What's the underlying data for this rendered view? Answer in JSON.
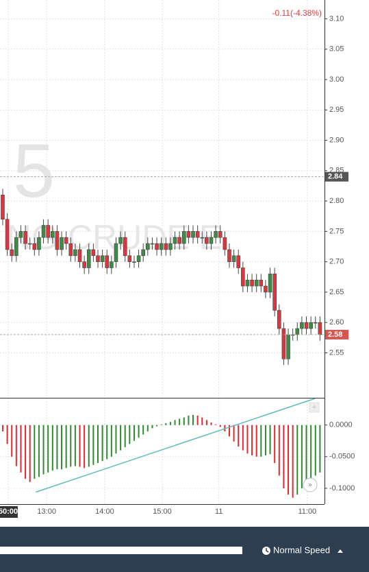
{
  "header": {
    "change": "-0.11(-4.38%)"
  },
  "watermark": {
    "interval": "5",
    "symbol": "NG CRUDE E"
  },
  "chart_data": [
    {
      "type": "candlestick",
      "x": [
        0,
        1,
        2,
        3,
        4,
        5,
        6,
        7,
        8,
        9,
        10,
        11,
        12,
        13,
        14,
        15,
        16,
        17,
        18,
        19,
        20,
        21,
        22,
        23,
        24,
        25,
        26,
        27,
        28,
        29,
        30,
        31,
        32,
        33,
        34,
        35,
        36,
        37,
        38,
        39,
        40,
        41,
        42,
        43,
        44,
        45,
        46,
        47,
        48,
        49,
        50,
        51,
        52,
        53,
        54,
        55,
        56,
        57,
        58,
        59,
        60,
        61,
        62,
        63,
        64,
        65,
        66,
        67,
        68,
        69,
        70
      ],
      "open": [
        2.81,
        2.77,
        2.72,
        2.71,
        2.74,
        2.75,
        2.73,
        2.73,
        2.72,
        2.74,
        2.76,
        2.74,
        2.75,
        2.72,
        2.74,
        2.73,
        2.71,
        2.72,
        2.7,
        2.69,
        2.72,
        2.71,
        2.7,
        2.71,
        2.69,
        2.7,
        2.73,
        2.74,
        2.71,
        2.7,
        2.7,
        2.71,
        2.72,
        2.73,
        2.73,
        2.72,
        2.73,
        2.72,
        2.73,
        2.74,
        2.73,
        2.75,
        2.74,
        2.75,
        2.74,
        2.74,
        2.73,
        2.74,
        2.75,
        2.74,
        2.72,
        2.7,
        2.71,
        2.69,
        2.66,
        2.67,
        2.66,
        2.67,
        2.66,
        2.65,
        2.68,
        2.62,
        2.59,
        2.54,
        2.58,
        2.58,
        2.59,
        2.6,
        2.59,
        2.6,
        2.6
      ],
      "high": [
        2.82,
        2.78,
        2.73,
        2.75,
        2.76,
        2.76,
        2.74,
        2.74,
        2.75,
        2.77,
        2.77,
        2.76,
        2.76,
        2.75,
        2.75,
        2.74,
        2.73,
        2.73,
        2.71,
        2.73,
        2.73,
        2.72,
        2.72,
        2.72,
        2.71,
        2.74,
        2.75,
        2.75,
        2.72,
        2.71,
        2.72,
        2.73,
        2.74,
        2.74,
        2.74,
        2.74,
        2.74,
        2.74,
        2.75,
        2.75,
        2.76,
        2.76,
        2.76,
        2.76,
        2.75,
        2.75,
        2.75,
        2.76,
        2.76,
        2.75,
        2.73,
        2.72,
        2.72,
        2.7,
        2.68,
        2.68,
        2.68,
        2.68,
        2.67,
        2.69,
        2.69,
        2.63,
        2.6,
        2.59,
        2.59,
        2.6,
        2.61,
        2.61,
        2.61,
        2.61,
        2.61
      ],
      "low": [
        2.76,
        2.71,
        2.7,
        2.7,
        2.73,
        2.72,
        2.72,
        2.71,
        2.71,
        2.73,
        2.73,
        2.73,
        2.71,
        2.71,
        2.72,
        2.7,
        2.7,
        2.69,
        2.68,
        2.68,
        2.7,
        2.69,
        2.69,
        2.68,
        2.68,
        2.69,
        2.72,
        2.7,
        2.69,
        2.69,
        2.69,
        2.7,
        2.71,
        2.72,
        2.71,
        2.71,
        2.71,
        2.71,
        2.72,
        2.72,
        2.72,
        2.73,
        2.73,
        2.73,
        2.73,
        2.72,
        2.72,
        2.73,
        2.73,
        2.71,
        2.69,
        2.69,
        2.68,
        2.65,
        2.65,
        2.65,
        2.65,
        2.65,
        2.64,
        2.64,
        2.61,
        2.58,
        2.53,
        2.53,
        2.57,
        2.57,
        2.58,
        2.58,
        2.58,
        2.59,
        2.57
      ],
      "close": [
        2.77,
        2.72,
        2.71,
        2.74,
        2.75,
        2.73,
        2.73,
        2.72,
        2.74,
        2.76,
        2.74,
        2.75,
        2.72,
        2.74,
        2.73,
        2.71,
        2.72,
        2.7,
        2.69,
        2.72,
        2.71,
        2.7,
        2.71,
        2.69,
        2.7,
        2.73,
        2.74,
        2.71,
        2.7,
        2.7,
        2.71,
        2.72,
        2.73,
        2.73,
        2.72,
        2.73,
        2.72,
        2.73,
        2.74,
        2.73,
        2.75,
        2.74,
        2.75,
        2.74,
        2.74,
        2.73,
        2.74,
        2.75,
        2.74,
        2.72,
        2.7,
        2.71,
        2.69,
        2.66,
        2.67,
        2.66,
        2.67,
        2.66,
        2.65,
        2.68,
        2.62,
        2.59,
        2.54,
        2.58,
        2.58,
        2.59,
        2.6,
        2.59,
        2.6,
        2.6,
        2.58
      ],
      "up_color": "#3d8b45",
      "down_color": "#d9363e",
      "xlim": [
        -0.6,
        71
      ],
      "xticks": [
        {
          "value": 1.2,
          "label": "50:00"
        },
        {
          "value": 9.7,
          "label": "13:00"
        },
        {
          "value": 22.5,
          "label": "14:00"
        },
        {
          "value": 35.2,
          "label": "15:00"
        },
        {
          "value": 47.7,
          "label": "11"
        },
        {
          "value": 67.2,
          "label": "11:00"
        }
      ],
      "ylim": [
        2.476,
        3.131
      ],
      "yticks": [
        {
          "value": 3.1,
          "label": "3.10"
        },
        3.05,
        {
          "value": 3,
          "label": "3.00"
        },
        2.95,
        {
          "value": 2.9,
          "label": "2.90"
        },
        2.85,
        {
          "value": 2.8,
          "label": "2.80"
        },
        2.75,
        {
          "value": 2.7,
          "label": "2.70"
        },
        2.65,
        {
          "value": 2.6,
          "label": "2.60"
        },
        2.55
      ],
      "grid": true,
      "price_lines": [
        {
          "value": 2.84,
          "color": "#555555"
        },
        {
          "value": 2.58,
          "color": "#d9534f"
        }
      ]
    },
    {
      "type": "bar",
      "x": [
        0,
        1,
        2,
        3,
        4,
        5,
        6,
        7,
        8,
        9,
        10,
        11,
        12,
        13,
        14,
        15,
        16,
        17,
        18,
        19,
        20,
        21,
        22,
        23,
        24,
        25,
        26,
        27,
        28,
        29,
        30,
        31,
        32,
        33,
        34,
        35,
        36,
        37,
        38,
        39,
        40,
        41,
        42,
        43,
        44,
        45,
        46,
        47,
        48,
        49,
        50,
        51,
        52,
        53,
        54,
        55,
        56,
        57,
        58,
        59,
        60,
        61,
        62,
        63,
        64,
        65,
        66,
        67,
        68,
        69,
        70
      ],
      "values": [
        -0.01,
        -0.03,
        -0.05,
        -0.065,
        -0.075,
        -0.085,
        -0.09,
        -0.085,
        -0.082,
        -0.078,
        -0.075,
        -0.072,
        -0.07,
        -0.07,
        -0.068,
        -0.066,
        -0.065,
        -0.066,
        -0.068,
        -0.066,
        -0.063,
        -0.06,
        -0.057,
        -0.054,
        -0.05,
        -0.045,
        -0.04,
        -0.035,
        -0.03,
        -0.025,
        -0.02,
        -0.015,
        -0.01,
        -0.005,
        -0.002,
        0.001,
        0.003,
        0.005,
        0.008,
        0.01,
        0.012,
        0.015,
        0.016,
        0.015,
        0.012,
        0.008,
        0.004,
        0.001,
        -0.003,
        -0.01,
        -0.018,
        -0.026,
        -0.034,
        -0.04,
        -0.045,
        -0.048,
        -0.05,
        -0.05,
        -0.048,
        -0.046,
        -0.06,
        -0.08,
        -0.1,
        -0.11,
        -0.115,
        -0.11,
        -0.1,
        -0.09,
        -0.085,
        -0.08,
        -0.075
      ],
      "up_color": "#2e8b2e",
      "down_color": "#e8262b",
      "xlim": [
        -0.6,
        71
      ],
      "ylim": [
        -0.125,
        0.042
      ],
      "yticks": [
        {
          "value": 0,
          "label": "0.0000"
        },
        {
          "value": -0.05,
          "label": "-0.0500"
        },
        {
          "value": -0.1,
          "label": "-0.1000"
        }
      ],
      "grid": true,
      "trendline": {
        "x": [
          7.3,
          68.9
        ],
        "y": [
          -0.106,
          0.042
        ],
        "color": "#5bbcb8"
      }
    }
  ],
  "footer": {
    "speed": "Normal Speed"
  }
}
